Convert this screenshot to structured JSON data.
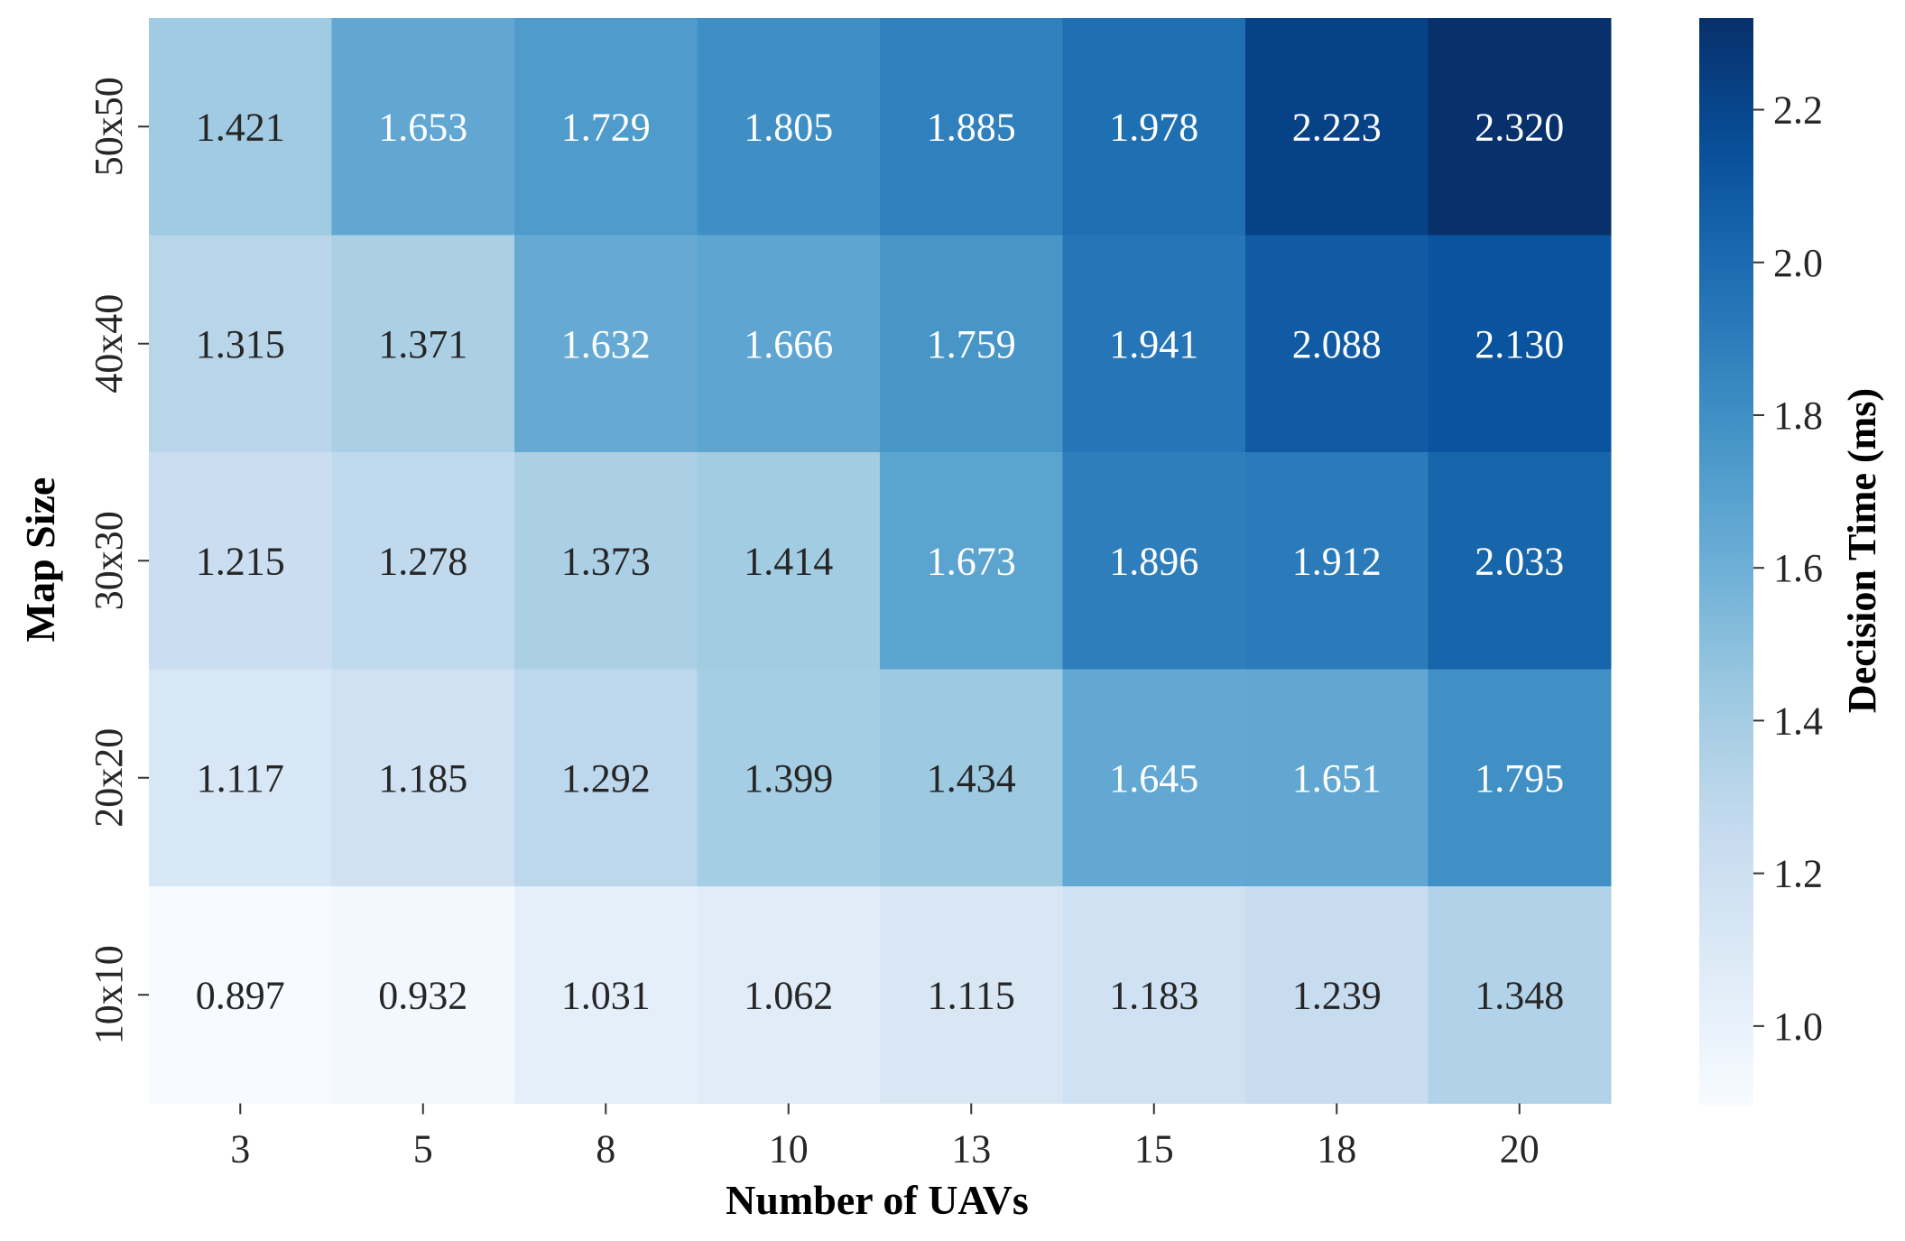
{
  "chart_data": {
    "type": "heatmap",
    "title": "",
    "xlabel": "Number of UAVs",
    "ylabel": "Map Size",
    "colorbar_label": "Decision Time (ms)",
    "x_categories": [
      "3",
      "5",
      "8",
      "10",
      "13",
      "15",
      "18",
      "20"
    ],
    "y_categories": [
      "50x50",
      "40x40",
      "30x30",
      "20x20",
      "10x10"
    ],
    "values": [
      [
        1.421,
        1.653,
        1.729,
        1.805,
        1.885,
        1.978,
        2.223,
        2.32
      ],
      [
        1.315,
        1.371,
        1.632,
        1.666,
        1.759,
        1.941,
        2.088,
        2.13
      ],
      [
        1.215,
        1.278,
        1.373,
        1.414,
        1.673,
        1.896,
        1.912,
        2.033
      ],
      [
        1.117,
        1.185,
        1.292,
        1.399,
        1.434,
        1.645,
        1.651,
        1.795
      ],
      [
        0.897,
        0.932,
        1.031,
        1.062,
        1.115,
        1.183,
        1.239,
        1.348
      ]
    ],
    "value_labels": [
      [
        "1.421",
        "1.653",
        "1.729",
        "1.805",
        "1.885",
        "1.978",
        "2.223",
        "2.320"
      ],
      [
        "1.315",
        "1.371",
        "1.632",
        "1.666",
        "1.759",
        "1.941",
        "2.088",
        "2.130"
      ],
      [
        "1.215",
        "1.278",
        "1.373",
        "1.414",
        "1.673",
        "1.896",
        "1.912",
        "2.033"
      ],
      [
        "1.117",
        "1.185",
        "1.292",
        "1.399",
        "1.434",
        "1.645",
        "1.651",
        "1.795"
      ],
      [
        "0.897",
        "0.932",
        "1.031",
        "1.062",
        "1.115",
        "1.183",
        "1.239",
        "1.348"
      ]
    ],
    "color_range": [
      0.897,
      2.32
    ],
    "colormap": "Blues",
    "colorbar_ticks": [
      1.0,
      1.2,
      1.4,
      1.6,
      1.8,
      2.0,
      2.2
    ],
    "colorbar_tick_labels": [
      "1.0",
      "1.2",
      "1.4",
      "1.6",
      "1.8",
      "2.0",
      "2.2"
    ]
  }
}
